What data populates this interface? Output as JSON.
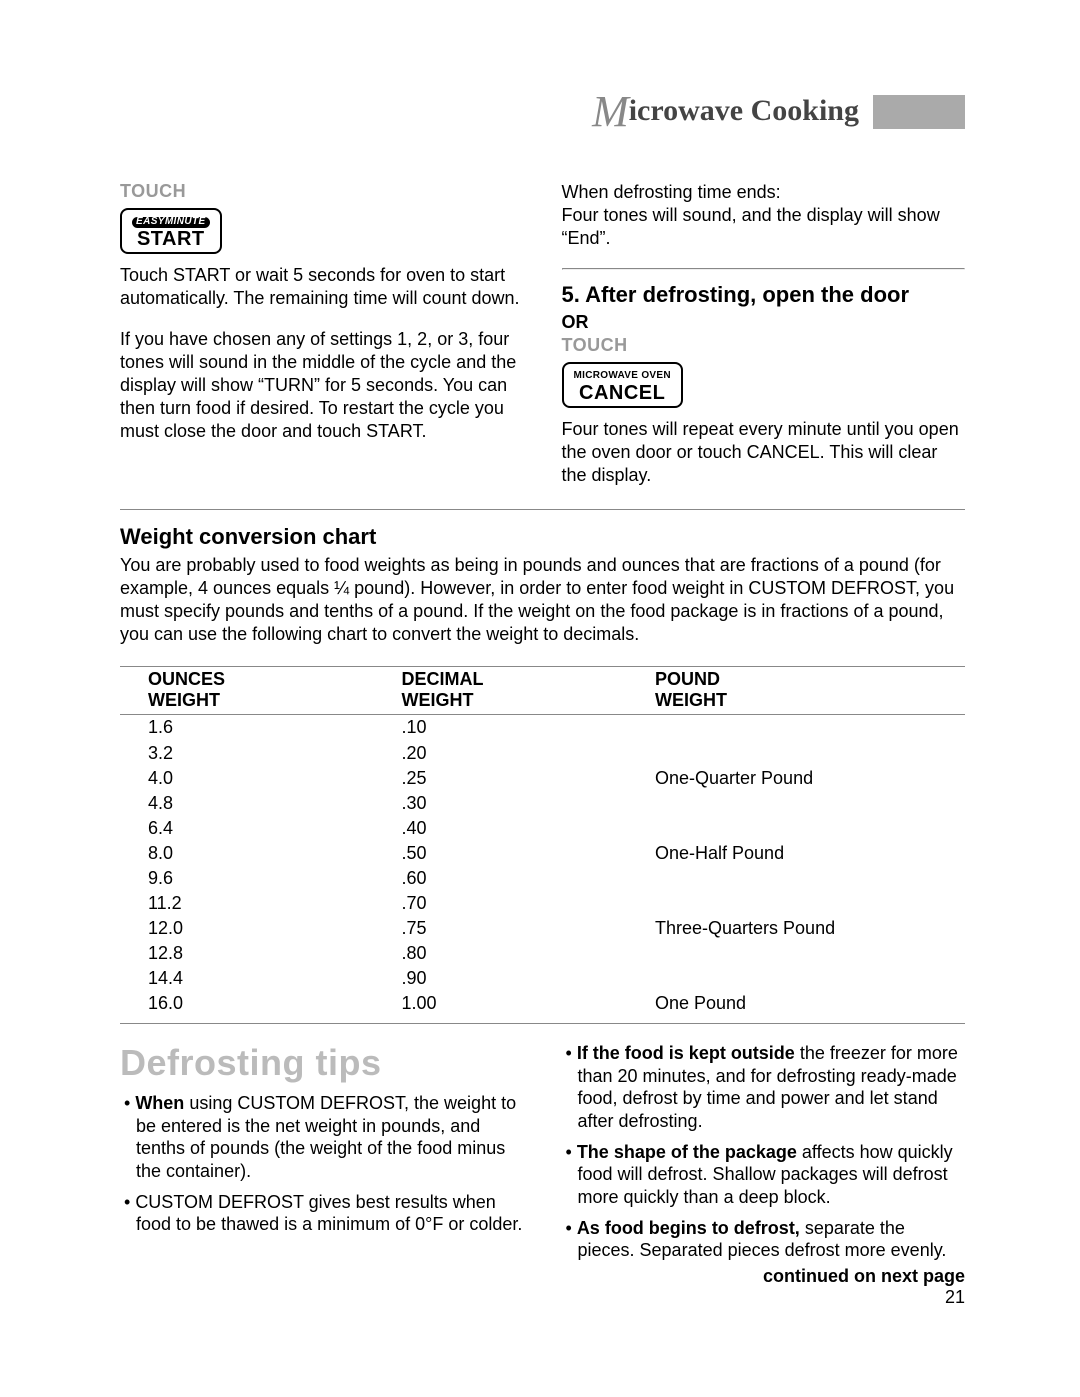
{
  "header": {
    "title_m": "M",
    "title_rest": "icrowave Cooking"
  },
  "left_column": {
    "touch_label": "TOUCH",
    "start_button_top": "EASYMINUTE",
    "start_button_main": "START",
    "para1": "Touch START or wait 5 seconds for oven to start automatically. The remaining time will count down.",
    "para2": "If you have chosen any of settings 1, 2, or 3, four tones will sound in the middle of the cycle and the display will show “TURN” for 5 seconds. You can then turn food if desired. To restart the cycle you must close the door and touch START."
  },
  "right_column": {
    "para_top": "When defrosting time ends:\nFour tones will sound, and the display will show “End”.",
    "step_heading": "5. After defrosting, open the door",
    "or_label": "OR",
    "touch_label": "TOUCH",
    "cancel_button_top": "MICROWAVE OVEN",
    "cancel_button_main": "CANCEL",
    "para_bottom": "Four tones will repeat every minute until you open the oven door or touch CANCEL. This will clear the display."
  },
  "conversion": {
    "heading": "Weight conversion chart",
    "intro": "You are probably used to food weights as being in pounds and ounces that are fractions of a pound (for example, 4 ounces equals ¼ pound). However, in order to enter food weight in CUSTOM DEFROST, you must specify pounds and tenths of a pound. If the weight on the food package is in fractions of a pound, you can use the following chart to convert the weight to decimals.",
    "columns": [
      "OUNCES\nWEIGHT",
      "DECIMAL\nWEIGHT",
      "POUND\nWEIGHT"
    ],
    "rows": [
      [
        "1.6",
        ".10",
        ""
      ],
      [
        "3.2",
        ".20",
        ""
      ],
      [
        "4.0",
        ".25",
        "One-Quarter Pound"
      ],
      [
        "4.8",
        ".30",
        ""
      ],
      [
        "6.4",
        ".40",
        ""
      ],
      [
        "8.0",
        ".50",
        "One-Half Pound"
      ],
      [
        "9.6",
        ".60",
        ""
      ],
      [
        "11.2",
        ".70",
        ""
      ],
      [
        "12.0",
        ".75",
        "Three-Quarters Pound"
      ],
      [
        "12.8",
        ".80",
        ""
      ],
      [
        "14.4",
        ".90",
        ""
      ],
      [
        "16.0",
        "1.00",
        "One Pound"
      ]
    ]
  },
  "tips": {
    "heading": "Defrosting tips",
    "left": [
      {
        "bold": "When",
        "rest": " using CUSTOM DEFROST, the weight to be entered is the net weight in pounds, and tenths of pounds (the weight of the food minus the container)."
      },
      {
        "bold": "",
        "rest": "CUSTOM DEFROST gives best results when food to be thawed is a minimum of 0°F or colder."
      }
    ],
    "right": [
      {
        "bold": "If the food is kept outside",
        "rest": " the freezer for more than 20 minutes, and for defrosting ready-made food, defrost by time and power and let stand after defrosting."
      },
      {
        "bold": "The shape of the package",
        "rest": " affects how quickly food will defrost. Shallow packages will defrost more quickly than a deep block."
      },
      {
        "bold": "As food begins to defrost,",
        "rest": " separate the pieces. Separated pieces defrost more evenly."
      }
    ]
  },
  "footer": {
    "continued": "continued on next page",
    "page_number": "21"
  }
}
